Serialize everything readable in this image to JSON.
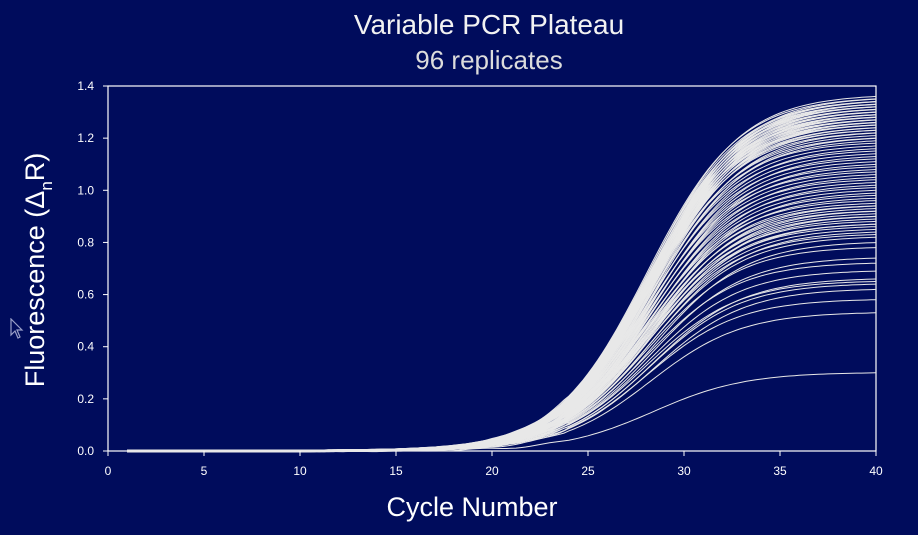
{
  "chart_data": {
    "type": "line",
    "title": "Variable PCR Plateau",
    "subtitle": "96 replicates",
    "xlabel": "Cycle Number",
    "ylabel": {
      "text": "Fluorescence (",
      "symbol": "Δ",
      "subscript": "n",
      "suffix": "R)"
    },
    "xlim": [
      0,
      40
    ],
    "ylim": [
      0,
      1.4
    ],
    "x_ticks": [
      "0",
      "5",
      "10",
      "15",
      "20",
      "25",
      "30",
      "35",
      "40"
    ],
    "y_ticks": [
      "0.0",
      "0.2",
      "0.4",
      "0.6",
      "0.8",
      "1.0",
      "1.2",
      "1.4"
    ],
    "grid": false,
    "legend": "none",
    "series_count": 96,
    "cycles": [
      1,
      40
    ],
    "baseline_until_cycle": 24,
    "midpoint_cycle": 28.2,
    "curve_steepness": 0.42,
    "plateau_values": [
      0.3,
      0.53,
      0.58,
      0.62,
      0.64,
      0.65,
      0.66,
      0.69,
      0.72,
      0.74,
      0.78,
      0.8,
      0.82,
      0.83,
      0.84,
      0.85,
      0.86,
      0.87,
      0.87,
      0.88,
      0.89,
      0.9,
      0.9,
      0.91,
      0.92,
      0.92,
      0.93,
      0.94,
      0.94,
      0.95,
      0.96,
      0.97,
      0.98,
      0.99,
      1.0,
      1.01,
      1.02,
      1.03,
      1.04,
      1.05,
      1.06,
      1.07,
      1.08,
      1.09,
      1.1,
      1.11,
      1.12,
      1.13,
      1.14,
      1.15,
      1.16,
      1.17,
      1.18,
      1.19,
      1.2,
      1.2,
      1.21,
      1.22,
      1.22,
      1.23,
      1.23,
      1.24,
      1.24,
      1.25,
      1.25,
      1.25,
      1.26,
      1.26,
      1.26,
      1.27,
      1.27,
      1.27,
      1.28,
      1.28,
      1.28,
      1.29,
      1.29,
      1.29,
      1.3,
      1.3,
      1.3,
      1.31,
      1.31,
      1.31,
      1.32,
      1.32,
      1.32,
      1.33,
      1.33,
      1.33,
      1.34,
      1.34,
      1.34,
      1.35,
      1.35,
      1.36
    ],
    "colors": {
      "background": "#000c5c",
      "line": "#e8e8e8",
      "axis": "#ffffff"
    }
  }
}
